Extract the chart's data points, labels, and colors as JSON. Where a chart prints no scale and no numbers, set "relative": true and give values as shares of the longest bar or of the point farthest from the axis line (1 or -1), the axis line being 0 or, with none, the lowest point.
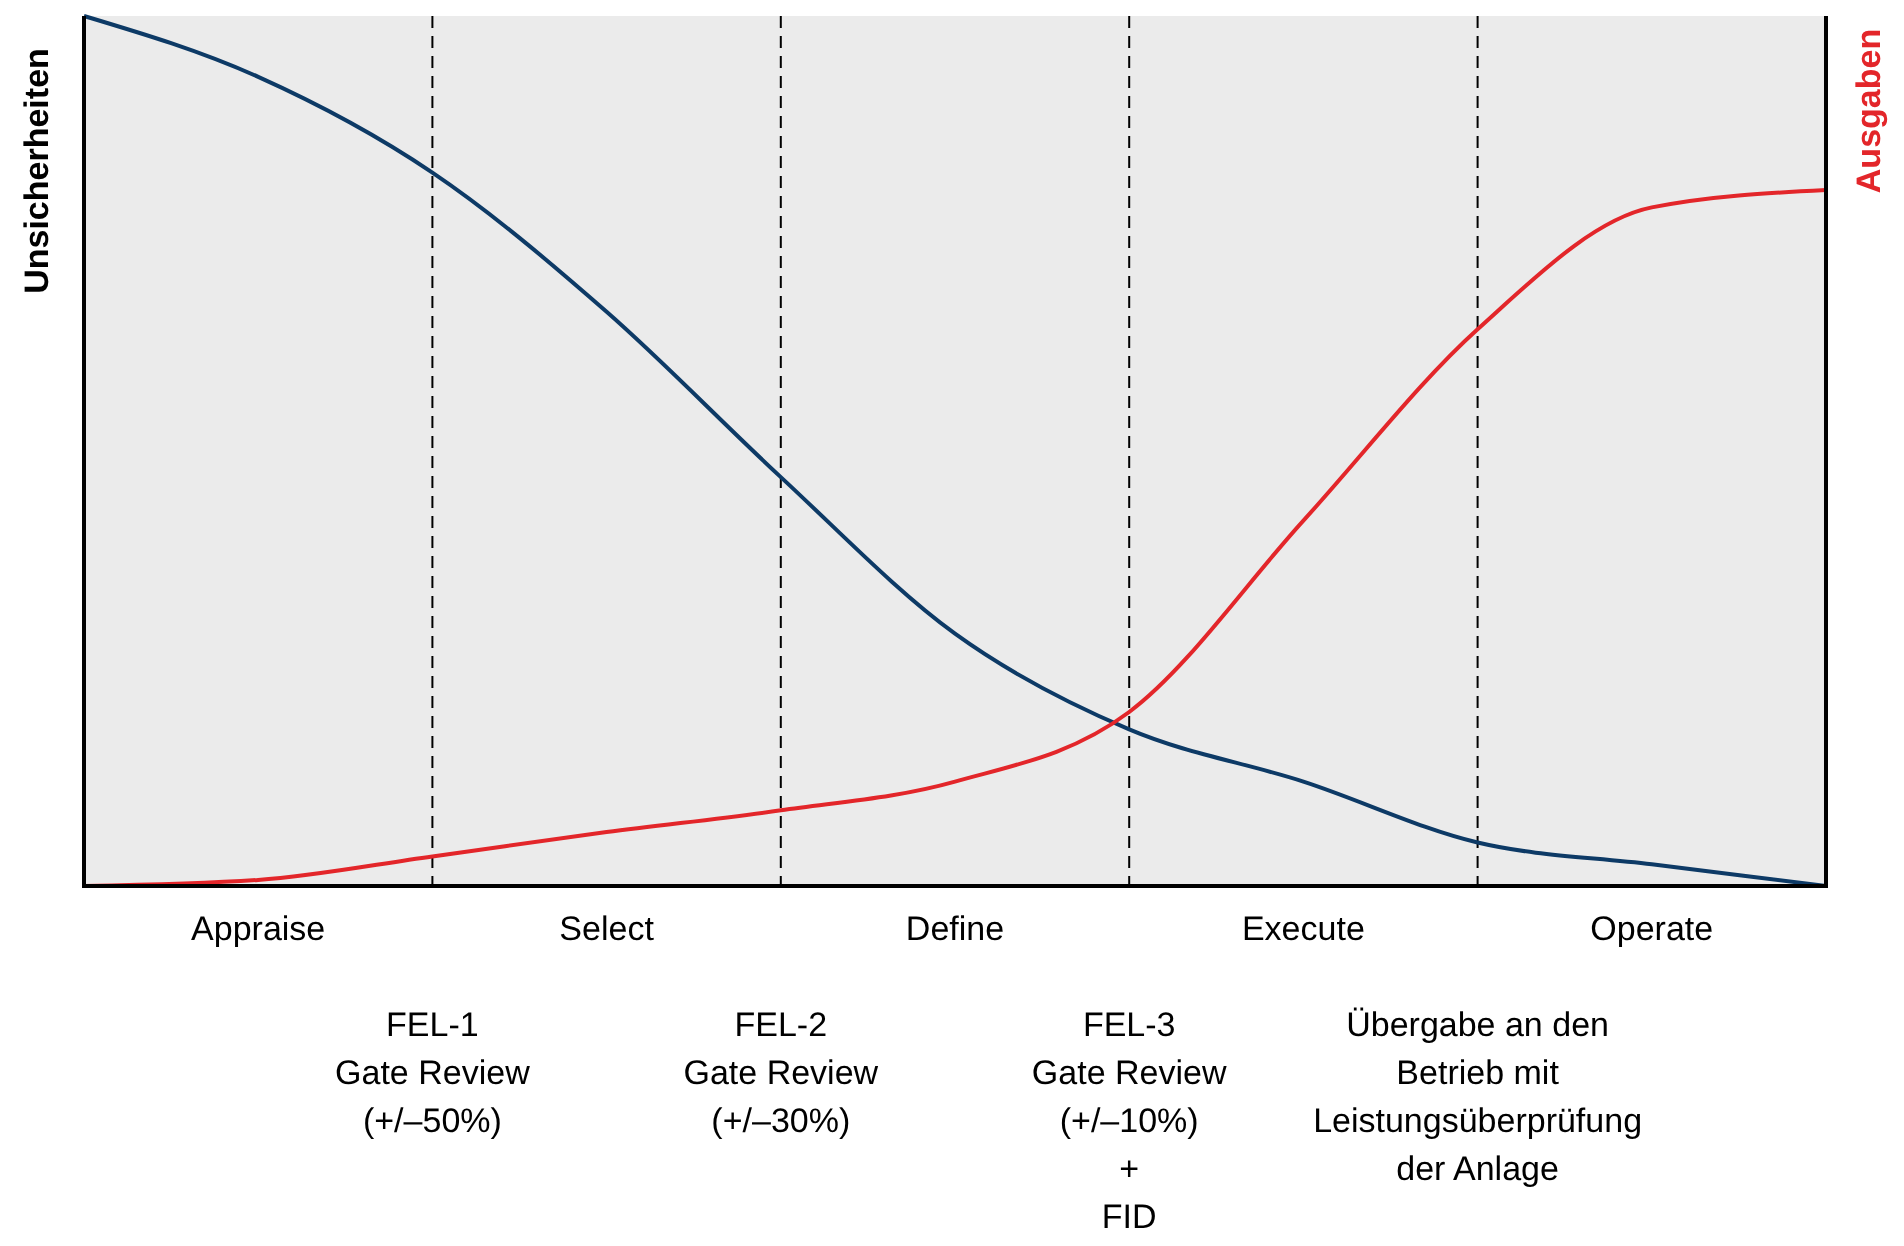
{
  "chart_data": {
    "type": "line",
    "relative": true,
    "ylabel": "Unsicherheiten",
    "y2label": "Ausgaben",
    "categories": [
      null,
      "Appraise",
      null,
      "Select",
      null,
      "Define",
      null,
      "Execute",
      null,
      "Operate",
      null
    ],
    "tick_labels": "x",
    "grid": "x",
    "series": [
      {
        "color": "#0d3a66",
        "values": [
          1,
          0.93,
          0.82,
          0.66,
          0.47,
          0.29,
          0.18,
          0.12,
          0.05,
          0.025,
          0
        ]
      },
      {
        "color": "#e3262a",
        "values": [
          0,
          0.007,
          0.034,
          0.062,
          0.087,
          0.12,
          0.2,
          0.42,
          0.64,
          0.78,
          0.8
        ]
      }
    ],
    "annotations": [
      "FEL-1\nGate Review\n(+/–50%)",
      "FEL-2\nGate Review\n(+/–30%)",
      "FEL-3\nGate Review\n(+/–10%)\n+\nFID",
      "Übergabe an den\nBetrieb mit\nLeistungsüberprüfung\nder Anlage"
    ]
  }
}
